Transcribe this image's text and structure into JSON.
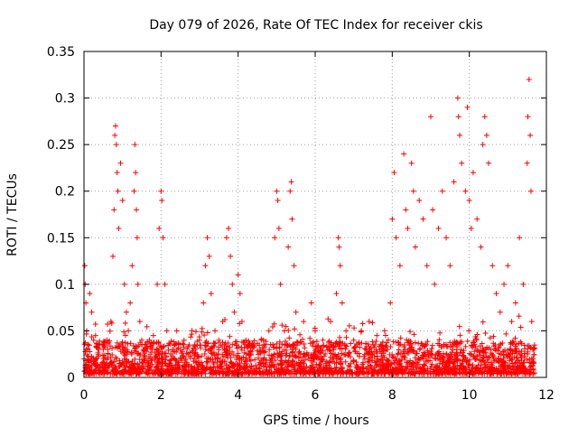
{
  "chart_data": {
    "type": "scatter",
    "title": "Day 079 of 2026, Rate Of TEC Index for receiver ckis",
    "xlabel": "GPS time / hours",
    "ylabel": "ROTI / TECUs",
    "xlim": [
      0,
      12
    ],
    "ylim": [
      0,
      0.35
    ],
    "grid": true,
    "marker": "+",
    "color": "#ff0000",
    "x_ticks": [
      {
        "value": 0,
        "label": "0"
      },
      {
        "value": 2,
        "label": "2"
      },
      {
        "value": 4,
        "label": "4"
      },
      {
        "value": 6,
        "label": "6"
      },
      {
        "value": 8,
        "label": "8"
      },
      {
        "value": 10,
        "label": "10"
      },
      {
        "value": 12,
        "label": "12"
      }
    ],
    "y_ticks": [
      {
        "value": 0,
        "label": "0"
      },
      {
        "value": 0.05,
        "label": "0.05"
      },
      {
        "value": 0.1,
        "label": "0.1"
      },
      {
        "value": 0.15,
        "label": "0.15"
      },
      {
        "value": 0.2,
        "label": "0.2"
      },
      {
        "value": 0.25,
        "label": "0.25"
      },
      {
        "value": 0.3,
        "label": "0.3"
      },
      {
        "value": 0.35,
        "label": "0.35"
      }
    ],
    "series": [
      {
        "name": "ROTI",
        "points": [
          [
            0.0,
            0.02
          ],
          [
            0.02,
            0.12
          ],
          [
            0.03,
            0.1
          ],
          [
            0.05,
            0.08
          ],
          [
            0.07,
            0.05
          ],
          [
            0.1,
            0.03
          ],
          [
            0.15,
            0.09
          ],
          [
            0.2,
            0.07
          ],
          [
            0.25,
            0.04
          ],
          [
            0.3,
            0.045
          ],
          [
            0.4,
            0.035
          ],
          [
            0.5,
            0.03
          ],
          [
            0.6,
            0.04
          ],
          [
            0.7,
            0.06
          ],
          [
            0.75,
            0.13
          ],
          [
            0.78,
            0.18
          ],
          [
            0.8,
            0.26
          ],
          [
            0.82,
            0.27
          ],
          [
            0.84,
            0.25
          ],
          [
            0.86,
            0.22
          ],
          [
            0.88,
            0.2
          ],
          [
            0.9,
            0.16
          ],
          [
            0.95,
            0.23
          ],
          [
            1.0,
            0.19
          ],
          [
            1.05,
            0.1
          ],
          [
            1.1,
            0.07
          ],
          [
            1.15,
            0.05
          ],
          [
            1.2,
            0.08
          ],
          [
            1.25,
            0.12
          ],
          [
            1.3,
            0.2
          ],
          [
            1.32,
            0.25
          ],
          [
            1.34,
            0.22
          ],
          [
            1.36,
            0.18
          ],
          [
            1.38,
            0.15
          ],
          [
            1.4,
            0.1
          ],
          [
            1.45,
            0.06
          ],
          [
            1.5,
            0.04
          ],
          [
            1.6,
            0.035
          ],
          [
            1.7,
            0.04
          ],
          [
            1.8,
            0.045
          ],
          [
            1.9,
            0.1
          ],
          [
            1.95,
            0.16
          ],
          [
            2.0,
            0.2
          ],
          [
            2.02,
            0.19
          ],
          [
            2.05,
            0.15
          ],
          [
            2.1,
            0.1
          ],
          [
            2.15,
            0.05
          ],
          [
            2.3,
            0.03
          ],
          [
            2.5,
            0.02
          ],
          [
            2.7,
            0.025
          ],
          [
            2.9,
            0.03
          ],
          [
            3.0,
            0.04
          ],
          [
            3.1,
            0.08
          ],
          [
            3.15,
            0.12
          ],
          [
            3.2,
            0.15
          ],
          [
            3.25,
            0.13
          ],
          [
            3.3,
            0.09
          ],
          [
            3.4,
            0.05
          ],
          [
            3.5,
            0.04
          ],
          [
            3.6,
            0.06
          ],
          [
            3.7,
            0.15
          ],
          [
            3.75,
            0.16
          ],
          [
            3.8,
            0.13
          ],
          [
            3.85,
            0.1
          ],
          [
            3.9,
            0.07
          ],
          [
            4.0,
            0.11
          ],
          [
            4.05,
            0.09
          ],
          [
            4.1,
            0.06
          ],
          [
            4.2,
            0.04
          ],
          [
            4.4,
            0.035
          ],
          [
            4.6,
            0.04
          ],
          [
            4.8,
            0.05
          ],
          [
            4.95,
            0.15
          ],
          [
            5.0,
            0.2
          ],
          [
            5.03,
            0.19
          ],
          [
            5.06,
            0.16
          ],
          [
            5.1,
            0.1
          ],
          [
            5.2,
            0.05
          ],
          [
            5.3,
            0.14
          ],
          [
            5.35,
            0.2
          ],
          [
            5.38,
            0.21
          ],
          [
            5.4,
            0.17
          ],
          [
            5.45,
            0.12
          ],
          [
            5.5,
            0.07
          ],
          [
            5.7,
            0.06
          ],
          [
            5.9,
            0.08
          ],
          [
            6.0,
            0.05
          ],
          [
            6.2,
            0.04
          ],
          [
            6.4,
            0.06
          ],
          [
            6.55,
            0.09
          ],
          [
            6.6,
            0.15
          ],
          [
            6.62,
            0.14
          ],
          [
            6.65,
            0.12
          ],
          [
            6.7,
            0.08
          ],
          [
            6.8,
            0.05
          ],
          [
            7.0,
            0.04
          ],
          [
            7.2,
            0.05
          ],
          [
            7.4,
            0.06
          ],
          [
            7.6,
            0.045
          ],
          [
            7.8,
            0.05
          ],
          [
            7.95,
            0.08
          ],
          [
            8.0,
            0.17
          ],
          [
            8.05,
            0.22
          ],
          [
            8.1,
            0.15
          ],
          [
            8.2,
            0.12
          ],
          [
            8.3,
            0.24
          ],
          [
            8.35,
            0.18
          ],
          [
            8.4,
            0.16
          ],
          [
            8.5,
            0.23
          ],
          [
            8.55,
            0.2
          ],
          [
            8.6,
            0.14
          ],
          [
            8.7,
            0.19
          ],
          [
            8.8,
            0.17
          ],
          [
            8.9,
            0.12
          ],
          [
            9.0,
            0.28
          ],
          [
            9.05,
            0.18
          ],
          [
            9.1,
            0.1
          ],
          [
            9.2,
            0.16
          ],
          [
            9.3,
            0.2
          ],
          [
            9.4,
            0.15
          ],
          [
            9.5,
            0.12
          ],
          [
            9.6,
            0.21
          ],
          [
            9.7,
            0.3
          ],
          [
            9.72,
            0.28
          ],
          [
            9.75,
            0.26
          ],
          [
            9.8,
            0.23
          ],
          [
            9.9,
            0.2
          ],
          [
            9.95,
            0.29
          ],
          [
            10.0,
            0.19
          ],
          [
            10.05,
            0.16
          ],
          [
            10.1,
            0.22
          ],
          [
            10.2,
            0.17
          ],
          [
            10.3,
            0.14
          ],
          [
            10.35,
            0.25
          ],
          [
            10.4,
            0.28
          ],
          [
            10.45,
            0.26
          ],
          [
            10.5,
            0.23
          ],
          [
            10.6,
            0.12
          ],
          [
            10.7,
            0.09
          ],
          [
            10.8,
            0.07
          ],
          [
            10.9,
            0.1
          ],
          [
            11.0,
            0.12
          ],
          [
            11.1,
            0.06
          ],
          [
            11.2,
            0.08
          ],
          [
            11.3,
            0.15
          ],
          [
            11.4,
            0.1
          ],
          [
            11.5,
            0.23
          ],
          [
            11.52,
            0.28
          ],
          [
            11.55,
            0.32
          ],
          [
            11.58,
            0.26
          ],
          [
            11.6,
            0.2
          ],
          [
            11.62,
            0.06
          ],
          [
            11.65,
            0.03
          ]
        ]
      }
    ]
  }
}
